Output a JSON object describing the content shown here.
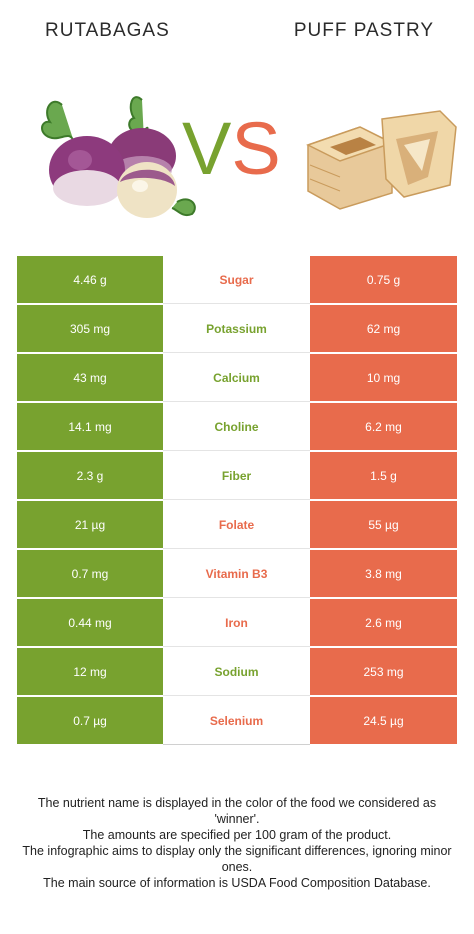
{
  "header": {
    "left_food": "RUTABAGAS",
    "right_food": "PUFF PASTRY",
    "vs_v": "V",
    "vs_s": "S"
  },
  "colors": {
    "left_food_color": "#78a22f",
    "right_food_color": "#e86b4c"
  },
  "rows": [
    {
      "nutrient": "Sugar",
      "left": "4.46 g",
      "right": "0.75 g",
      "winner": "right"
    },
    {
      "nutrient": "Potassium",
      "left": "305 mg",
      "right": "62 mg",
      "winner": "left"
    },
    {
      "nutrient": "Calcium",
      "left": "43 mg",
      "right": "10 mg",
      "winner": "left"
    },
    {
      "nutrient": "Choline",
      "left": "14.1 mg",
      "right": "6.2 mg",
      "winner": "left"
    },
    {
      "nutrient": "Fiber",
      "left": "2.3 g",
      "right": "1.5 g",
      "winner": "left"
    },
    {
      "nutrient": "Folate",
      "left": "21 µg",
      "right": "55 µg",
      "winner": "right"
    },
    {
      "nutrient": "Vitamin B3",
      "left": "0.7 mg",
      "right": "3.8 mg",
      "winner": "right"
    },
    {
      "nutrient": "Iron",
      "left": "0.44 mg",
      "right": "2.6 mg",
      "winner": "right"
    },
    {
      "nutrient": "Sodium",
      "left": "12 mg",
      "right": "253 mg",
      "winner": "left"
    },
    {
      "nutrient": "Selenium",
      "left": "0.7 µg",
      "right": "24.5 µg",
      "winner": "right"
    }
  ],
  "footer": {
    "lines": [
      "The nutrient name is displayed in the color of the food we considered as 'winner'.",
      "The amounts are specified per 100 gram of the product.",
      "The infographic aims to display only the significant differences, ignoring minor ones.",
      "The main source of information is USDA Food Composition Database."
    ]
  }
}
